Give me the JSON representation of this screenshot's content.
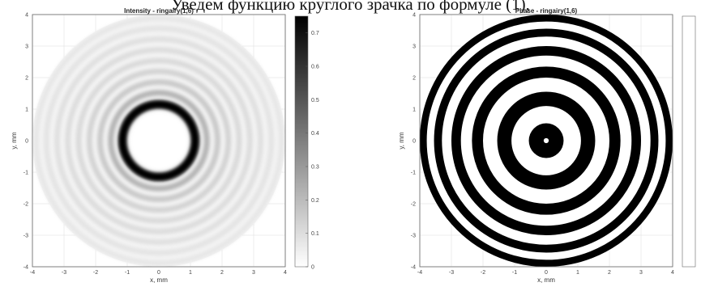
{
  "page": {
    "top_text": "Уведем функцию круглого зрачка по формуле (1),"
  },
  "chart_data": [
    {
      "type": "heatmap",
      "title": "Intensity - ringairy(1,6)",
      "xlabel": "x, mm",
      "ylabel": "y, mm",
      "xlim": [
        -4,
        4
      ],
      "ylim": [
        -4,
        4
      ],
      "xticks": [
        "-4",
        "-3",
        "-2",
        "-1",
        "0",
        "1",
        "2",
        "3",
        "4"
      ],
      "yticks": [
        "4",
        "3",
        "2",
        "1",
        "0",
        "-1",
        "-2",
        "-3",
        "-4"
      ],
      "colormap": "gray-reversed",
      "colorbar": {
        "min": 0,
        "max": 0.75,
        "ticks": [
          "0.7",
          "0.6",
          "0.5",
          "0.4",
          "0.3",
          "0.2",
          "0.1",
          "0"
        ]
      },
      "grid": true,
      "aperture_radius": 4,
      "rings": [
        {
          "r": 1.15,
          "value": 0.75
        },
        {
          "r": 1.52,
          "value": 0.22
        },
        {
          "r": 1.86,
          "value": 0.16
        },
        {
          "r": 2.2,
          "value": 0.13
        },
        {
          "r": 2.54,
          "value": 0.11
        },
        {
          "r": 2.88,
          "value": 0.1
        },
        {
          "r": 3.22,
          "value": 0.09
        },
        {
          "r": 3.56,
          "value": 0.08
        },
        {
          "r": 3.88,
          "value": 0.07
        }
      ]
    },
    {
      "type": "heatmap",
      "title": "Phase - ringairy(1,6)",
      "xlabel": "x, mm",
      "ylabel": "y, mm",
      "xlim": [
        -4,
        4
      ],
      "ylim": [
        -4,
        4
      ],
      "xticks": [
        "-4",
        "-3",
        "-2",
        "-1",
        "0",
        "1",
        "2",
        "3",
        "4"
      ],
      "yticks": [
        "4",
        "3",
        "2",
        "1",
        "0",
        "-1",
        "-2",
        "-3",
        "-4"
      ],
      "colormap": "binary",
      "grid": true,
      "aperture_radius": 4,
      "center_dot_radius": 0.08,
      "dark_bands": [
        {
          "r_in": 0.0,
          "r_out": 0.55
        },
        {
          "r_in": 1.1,
          "r_out": 1.55
        },
        {
          "r_in": 2.0,
          "r_out": 2.35
        },
        {
          "r_in": 2.7,
          "r_out": 3.0
        },
        {
          "r_in": 3.3,
          "r_out": 3.55
        },
        {
          "r_in": 3.78,
          "r_out": 4.0
        }
      ]
    }
  ]
}
